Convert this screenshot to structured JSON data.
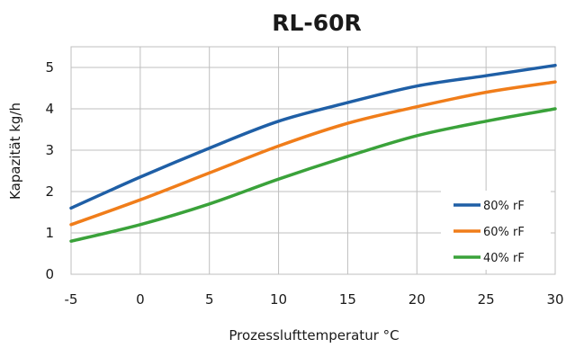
{
  "chart_data": {
    "type": "line",
    "title": "RL-60R",
    "xlabel": "Prozesslufttemperatur °C",
    "ylabel": "Kapazität kg/h",
    "x": [
      -5,
      0,
      5,
      10,
      15,
      20,
      25,
      30
    ],
    "x_tick_labels": [
      "-5",
      "0",
      "5",
      "10",
      "15",
      "20",
      "25",
      "30"
    ],
    "y_tick_labels": [
      "0",
      "1",
      "2",
      "3",
      "4",
      "5"
    ],
    "xlim": [
      -5,
      30
    ],
    "ylim": [
      0,
      5.5
    ],
    "grid": true,
    "legend_position": "bottom-right",
    "series": [
      {
        "name": "80% rF",
        "color": "#1f5fa6",
        "values": [
          1.6,
          2.35,
          3.05,
          3.7,
          4.15,
          4.55,
          4.8,
          5.05
        ]
      },
      {
        "name": "60% rF",
        "color": "#f07d1a",
        "values": [
          1.2,
          1.8,
          2.45,
          3.1,
          3.65,
          4.05,
          4.4,
          4.65
        ]
      },
      {
        "name": "40% rF",
        "color": "#3aa23a",
        "values": [
          0.8,
          1.2,
          1.7,
          2.3,
          2.85,
          3.35,
          3.7,
          4.0
        ]
      }
    ]
  }
}
